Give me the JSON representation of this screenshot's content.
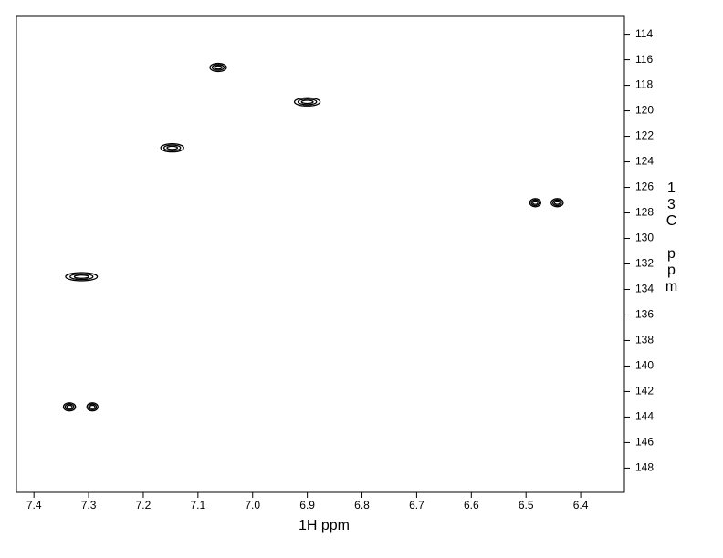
{
  "chart_data": {
    "type": "contour",
    "x_label": "1H ppm",
    "y_label": "13C ppm",
    "x": [
      7.063,
      6.9,
      7.147,
      6.483,
      6.443,
      7.313,
      7.335,
      7.293
    ],
    "values": [
      116.6,
      119.3,
      122.9,
      127.2,
      127.2,
      133.0,
      143.2,
      143.2
    ],
    "peak_widths": [
      0.03,
      0.047,
      0.042,
      0.02,
      0.022,
      0.058,
      0.022,
      0.02
    ],
    "color": "#000000",
    "xlim": [
      7.432,
      6.32
    ],
    "ylim": [
      112.6,
      149.9
    ],
    "xticks": [
      7.4,
      7.3,
      7.2,
      7.1,
      {
        "value": 7,
        "label": "7.0"
      },
      6.9,
      6.8,
      6.7,
      6.6,
      6.5,
      6.4
    ],
    "yticks": [
      114,
      116,
      118,
      120,
      122,
      124,
      126,
      128,
      130,
      132,
      134,
      136,
      138,
      140,
      142,
      144,
      146,
      148
    ]
  }
}
